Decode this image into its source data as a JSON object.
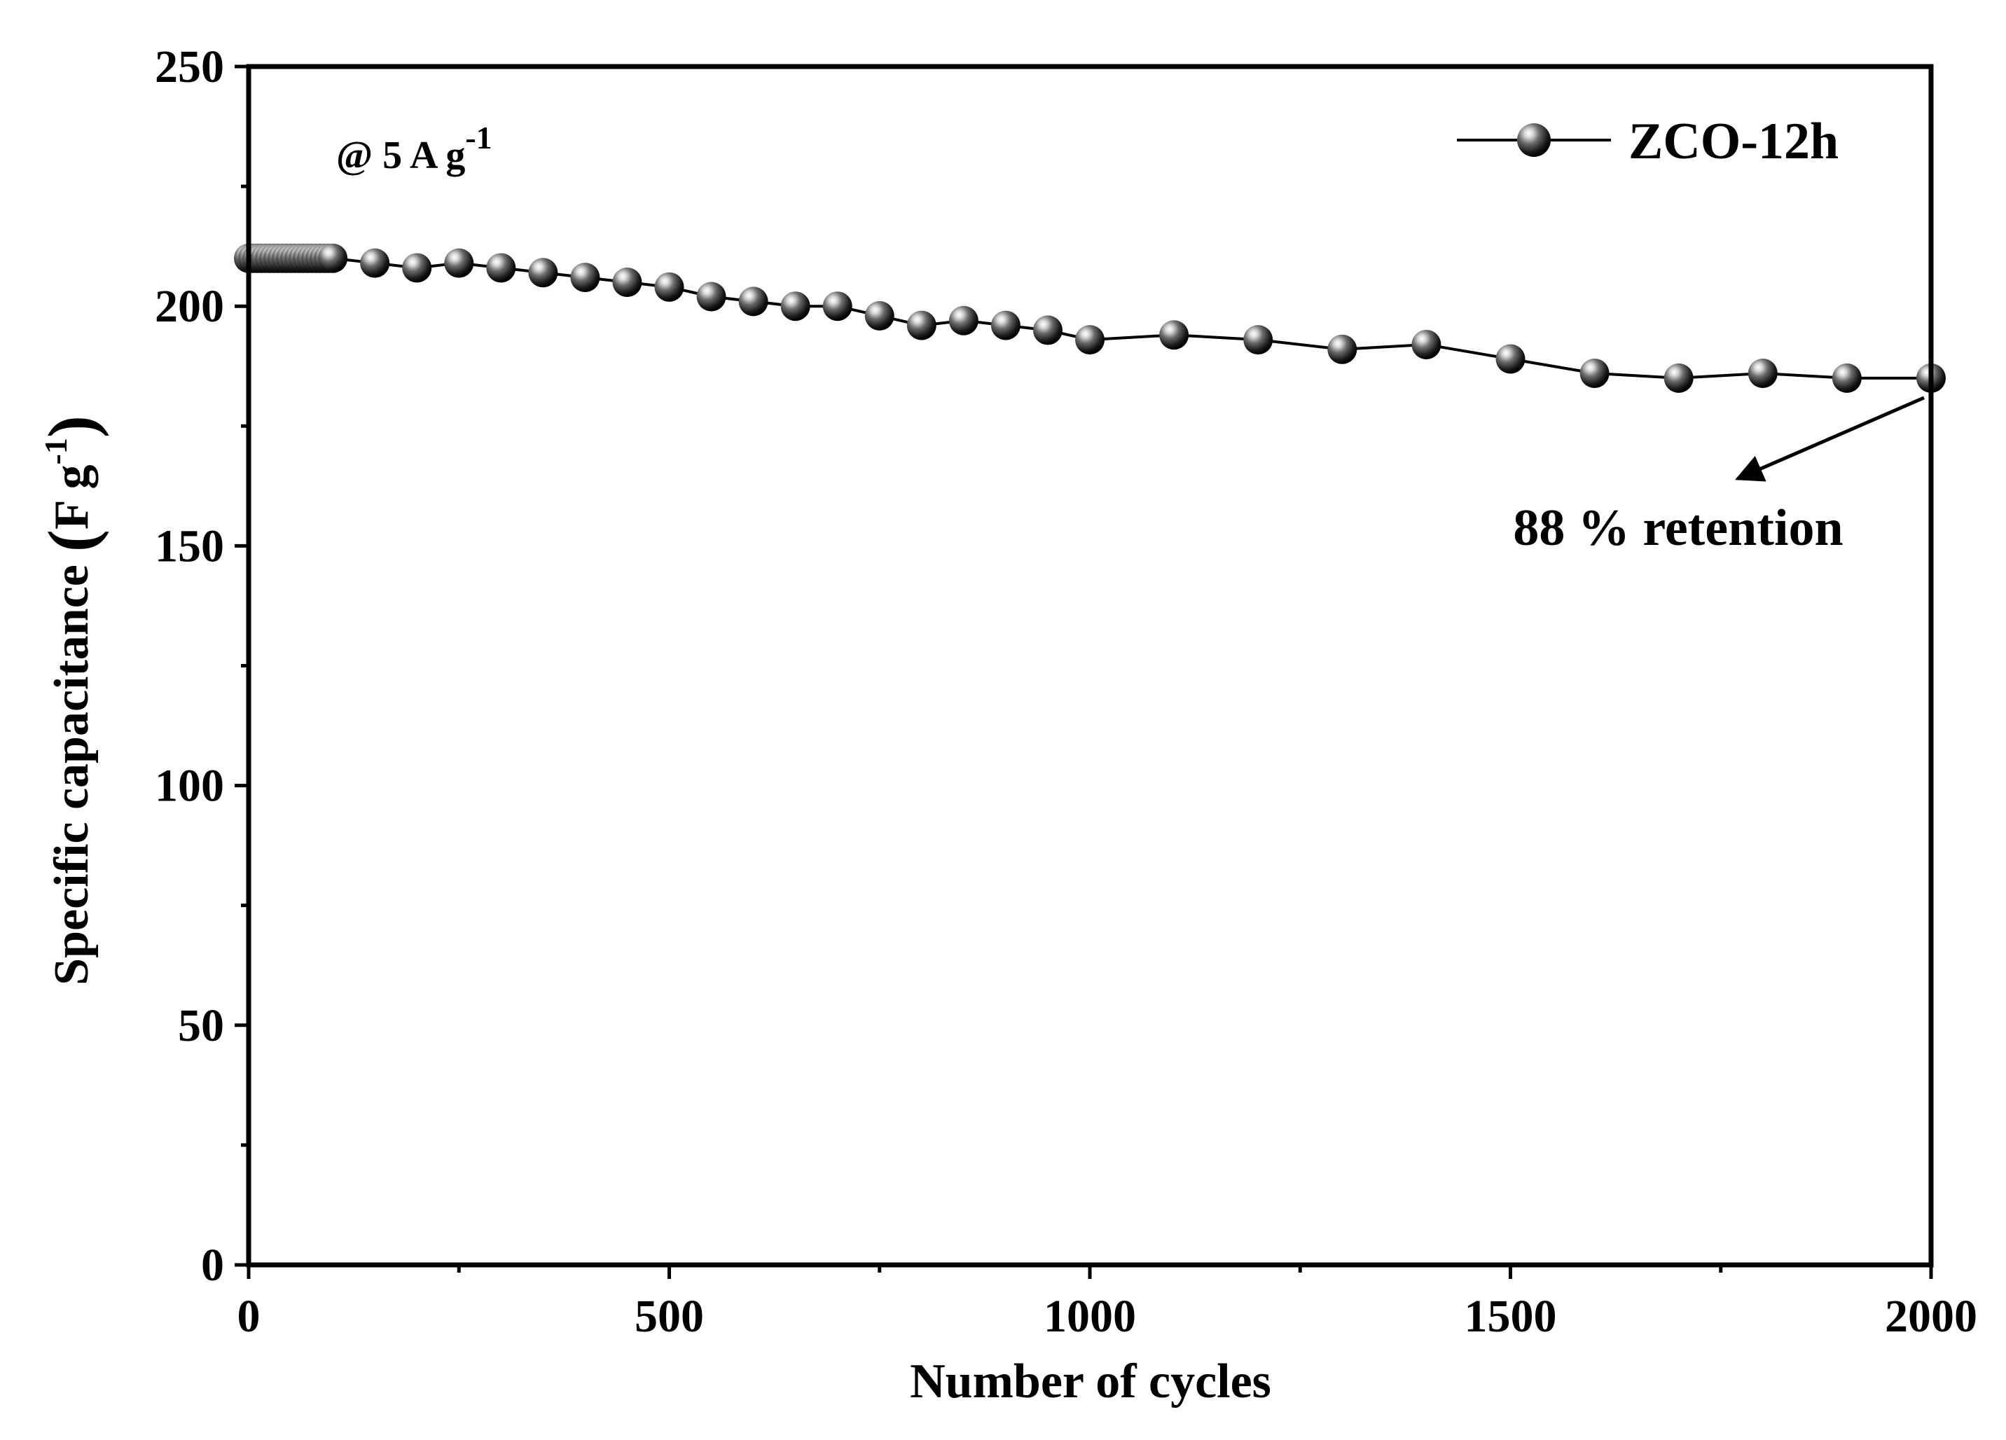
{
  "chart_data": {
    "type": "line",
    "title": "",
    "xlabel": "Number of cycles",
    "ylabel": {
      "main": "Specific capacitance",
      "unit": "F g",
      "unit_sup": "-1"
    },
    "xlim": [
      0,
      2000
    ],
    "ylim": [
      0,
      250
    ],
    "x_ticks": [
      0,
      500,
      1000,
      1500,
      2000
    ],
    "y_ticks": [
      0,
      50,
      100,
      150,
      200,
      250
    ],
    "x_tick_labels": [
      "0",
      "500",
      "1000",
      "1500",
      "2000"
    ],
    "y_tick_labels": [
      "0",
      "50",
      "100",
      "150",
      "200",
      "250"
    ],
    "x_minor_step": 250,
    "y_minor_step": 25,
    "grid": false,
    "legend_position": "top-right",
    "series": [
      {
        "name": "ZCO-12h",
        "marker": "sphere",
        "color": "#000000",
        "x": [
          0,
          5,
          10,
          15,
          20,
          25,
          30,
          35,
          40,
          45,
          50,
          55,
          60,
          65,
          70,
          75,
          80,
          85,
          90,
          95,
          100,
          150,
          200,
          250,
          300,
          350,
          400,
          450,
          500,
          550,
          600,
          650,
          700,
          750,
          800,
          850,
          900,
          950,
          1000,
          1100,
          1200,
          1300,
          1400,
          1500,
          1600,
          1700,
          1800,
          1900,
          2000
        ],
        "y": [
          210,
          210,
          210,
          210,
          210,
          210,
          210,
          210,
          210,
          210,
          210,
          210,
          210,
          210,
          210,
          210,
          210,
          210,
          210,
          210,
          210,
          209,
          208,
          209,
          208,
          207,
          206,
          205,
          204,
          202,
          201,
          200,
          200,
          198,
          196,
          197,
          196,
          195,
          193,
          194,
          193,
          191,
          192,
          189,
          186,
          185,
          186,
          185,
          185
        ]
      }
    ],
    "annotations": {
      "condition_main": "@ 5 A g",
      "condition_sup": "-1",
      "retention": "88 % retention",
      "arrow_from": [
        2000,
        185
      ],
      "arrow_to": [
        1770,
        164
      ]
    }
  }
}
